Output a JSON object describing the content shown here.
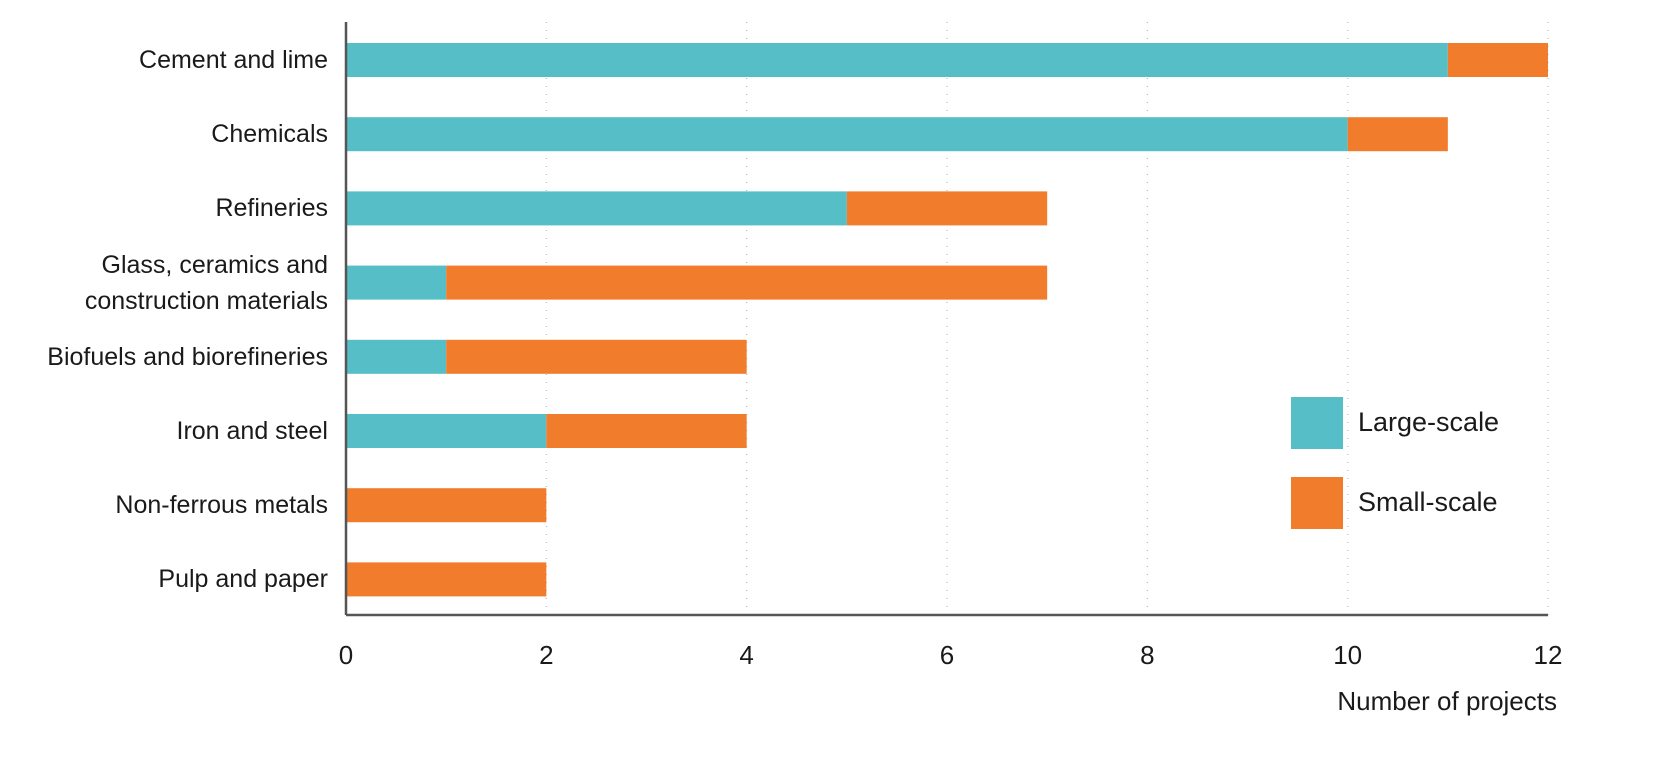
{
  "chart_data": {
    "type": "stacked-bar-horizontal",
    "categories": [
      "Cement and lime",
      "Chemicals",
      "Refineries",
      "Glass, ceramics and construction materials",
      "Biofuels and biorefineries",
      "Iron and steel",
      "Non-ferrous metals",
      "Pulp and paper"
    ],
    "series": [
      {
        "name": "Large-scale",
        "color": "#55bec6",
        "values": [
          11,
          10,
          5,
          1,
          1,
          2,
          0,
          0
        ]
      },
      {
        "name": "Small-scale",
        "color": "#f07c2c",
        "values": [
          1,
          1,
          2,
          6,
          3,
          2,
          2,
          2
        ]
      }
    ],
    "xlim": [
      0,
      12
    ],
    "xticks": [
      0,
      2,
      4,
      6,
      8,
      10,
      12
    ],
    "xlabel": "Number of projects",
    "grid": true,
    "legend": "right"
  }
}
